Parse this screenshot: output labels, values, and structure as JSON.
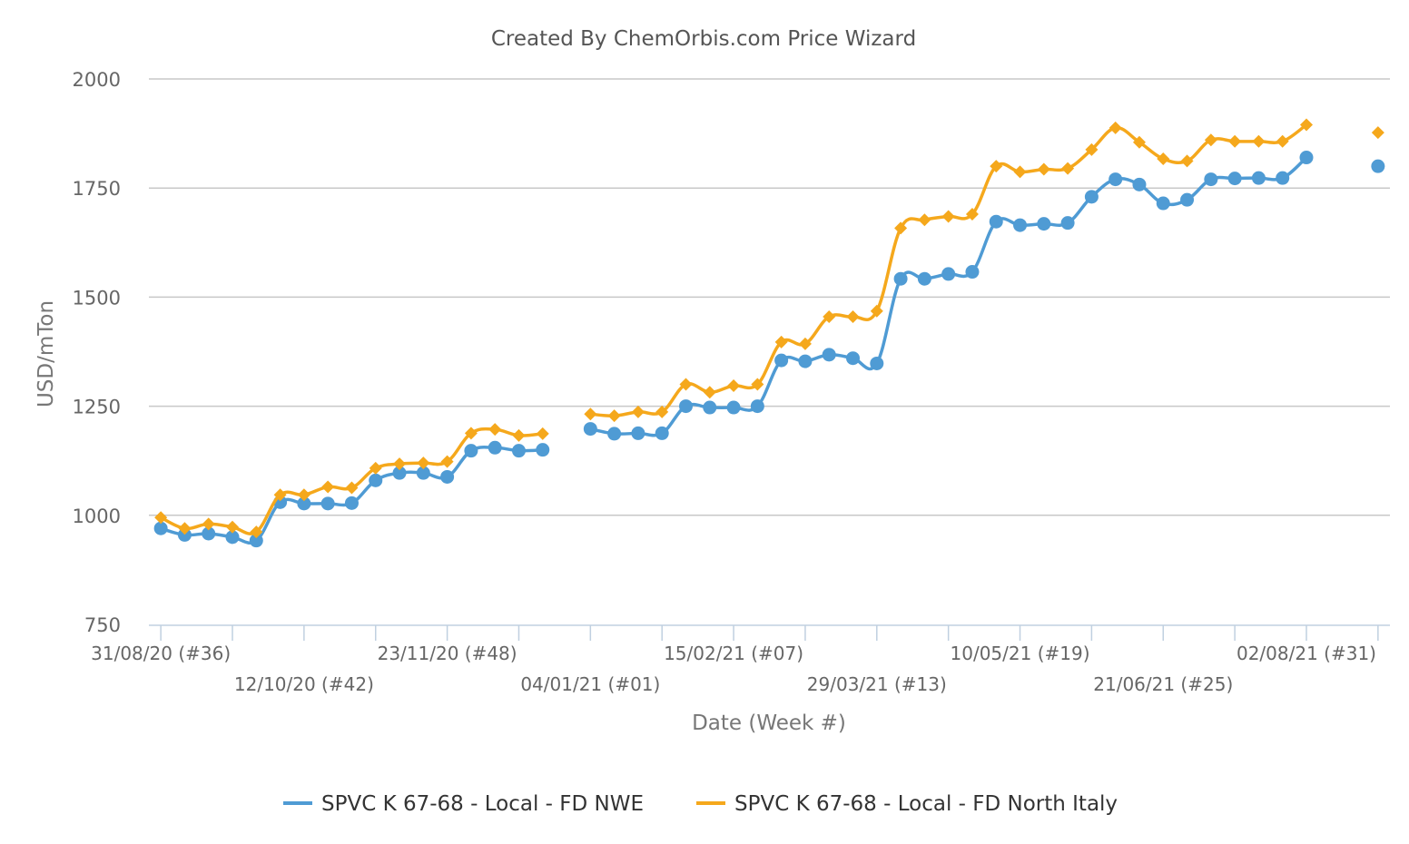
{
  "chart_data": {
    "type": "line",
    "title": "Created By ChemOrbis.com Price Wizard",
    "xlabel": "Date (Week #)",
    "ylabel": "USD/mTon",
    "ylim": [
      750,
      2000
    ],
    "yticks": [
      750,
      1000,
      1250,
      1500,
      1750,
      2000
    ],
    "grid": true,
    "legend_position": "bottom",
    "x_labels": [
      {
        "week_index": 0,
        "label": "31/08/20 (#36)"
      },
      {
        "week_index": 6,
        "label": "12/10/20 (#42)"
      },
      {
        "week_index": 12,
        "label": "23/11/20 (#48)"
      },
      {
        "week_index": 18,
        "label": "04/01/21 (#01)"
      },
      {
        "week_index": 24,
        "label": "15/02/21 (#07)"
      },
      {
        "week_index": 30,
        "label": "29/03/21 (#13)"
      },
      {
        "week_index": 36,
        "label": "10/05/21 (#19)"
      },
      {
        "week_index": 42,
        "label": "21/06/21 (#25)"
      },
      {
        "week_index": 48,
        "label": "02/08/21 (#31)"
      }
    ],
    "x_tick_weeks": [
      0,
      3,
      6,
      9,
      12,
      15,
      18,
      21,
      24,
      27,
      30,
      33,
      36,
      39,
      42,
      45,
      48,
      51
    ],
    "x_range": [
      -0.5,
      51.5
    ],
    "series": [
      {
        "name": "SPVC K 67-68 - Local - FD NWE",
        "color": "#4f9bd4",
        "marker": "circle",
        "points": [
          [
            0,
            970
          ],
          [
            1,
            955
          ],
          [
            2,
            958
          ],
          [
            3,
            950
          ],
          [
            4,
            942
          ],
          [
            5,
            1030
          ],
          [
            6,
            1027
          ],
          [
            7,
            1027
          ],
          [
            8,
            1028
          ],
          [
            9,
            1080
          ],
          [
            10,
            1097
          ],
          [
            11,
            1097
          ],
          [
            12,
            1088
          ],
          [
            13,
            1148
          ],
          [
            14,
            1155
          ],
          [
            15,
            1148
          ],
          [
            16,
            1150
          ],
          null,
          [
            18,
            1198
          ],
          [
            19,
            1187
          ],
          [
            20,
            1188
          ],
          [
            21,
            1188
          ],
          [
            22,
            1250
          ],
          [
            23,
            1247
          ],
          [
            24,
            1247
          ],
          [
            25,
            1250
          ],
          [
            26,
            1355
          ],
          [
            27,
            1353
          ],
          [
            28,
            1368
          ],
          [
            29,
            1360
          ],
          [
            30,
            1348
          ],
          [
            31,
            1542
          ],
          [
            32,
            1542
          ],
          [
            33,
            1553
          ],
          [
            34,
            1558
          ],
          [
            35,
            1673
          ],
          [
            36,
            1665
          ],
          [
            37,
            1668
          ],
          [
            38,
            1670
          ],
          [
            39,
            1730
          ],
          [
            40,
            1770
          ],
          [
            41,
            1758
          ],
          [
            42,
            1715
          ],
          [
            43,
            1723
          ],
          [
            44,
            1770
          ],
          [
            45,
            1772
          ],
          [
            46,
            1773
          ],
          [
            47,
            1773
          ],
          [
            48,
            1820
          ],
          null,
          null,
          [
            51,
            1800
          ]
        ]
      },
      {
        "name": "SPVC K 67-68 - Local - FD North Italy",
        "color": "#f5a81c",
        "marker": "diamond",
        "points": [
          [
            0,
            995
          ],
          [
            1,
            970
          ],
          [
            2,
            980
          ],
          [
            3,
            973
          ],
          [
            4,
            962
          ],
          [
            5,
            1047
          ],
          [
            6,
            1047
          ],
          [
            7,
            1065
          ],
          [
            8,
            1063
          ],
          [
            9,
            1108
          ],
          [
            10,
            1118
          ],
          [
            11,
            1120
          ],
          [
            12,
            1123
          ],
          [
            13,
            1188
          ],
          [
            14,
            1197
          ],
          [
            15,
            1183
          ],
          [
            16,
            1187
          ],
          null,
          [
            18,
            1232
          ],
          [
            19,
            1228
          ],
          [
            20,
            1237
          ],
          [
            21,
            1237
          ],
          [
            22,
            1300
          ],
          [
            23,
            1282
          ],
          [
            24,
            1297
          ],
          [
            25,
            1300
          ],
          [
            26,
            1397
          ],
          [
            27,
            1393
          ],
          [
            28,
            1455
          ],
          [
            29,
            1455
          ],
          [
            30,
            1468
          ],
          [
            31,
            1658
          ],
          [
            32,
            1677
          ],
          [
            33,
            1685
          ],
          [
            34,
            1690
          ],
          [
            35,
            1800
          ],
          [
            36,
            1787
          ],
          [
            37,
            1793
          ],
          [
            38,
            1795
          ],
          [
            39,
            1838
          ],
          [
            40,
            1888
          ],
          [
            41,
            1855
          ],
          [
            42,
            1817
          ],
          [
            43,
            1812
          ],
          [
            44,
            1860
          ],
          [
            45,
            1857
          ],
          [
            46,
            1857
          ],
          [
            47,
            1857
          ],
          [
            48,
            1895
          ],
          null,
          null,
          [
            51,
            1877
          ]
        ]
      }
    ]
  }
}
